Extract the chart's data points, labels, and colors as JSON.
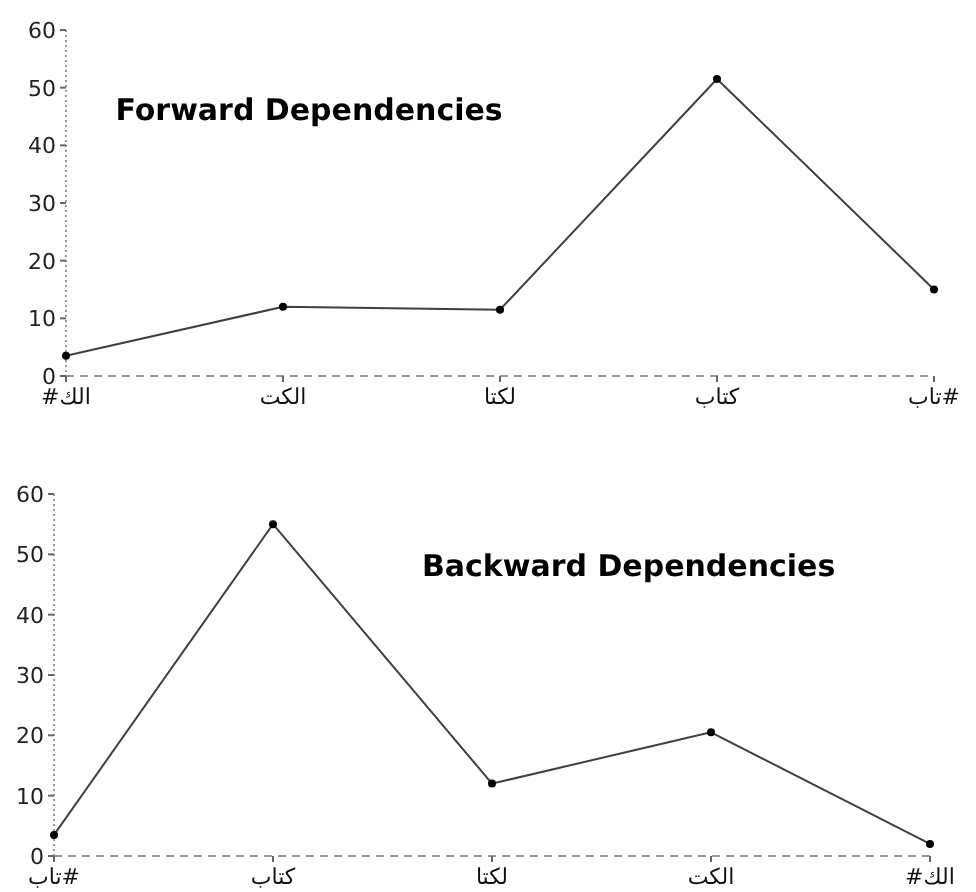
{
  "chart_data": [
    {
      "type": "line",
      "title": "Forward Dependencies",
      "categories": [
        "#الك",
        "الكت",
        "لكتا",
        "كتاب",
        "تاب#"
      ],
      "values": [
        3.5,
        12,
        11.5,
        51.5,
        15
      ],
      "color": "#404040",
      "marker": "circle",
      "ylim": [
        0,
        60
      ],
      "yticks": [
        0,
        10,
        20,
        30,
        40,
        50,
        60
      ]
    },
    {
      "type": "line",
      "title": "Backward Dependencies",
      "categories": [
        "تاب#",
        "كتاب",
        "لكتا",
        "الكت",
        "#الك"
      ],
      "values": [
        3.5,
        55,
        12,
        20.5,
        2
      ],
      "color": "#404040",
      "marker": "circle",
      "ylim": [
        0,
        60
      ],
      "yticks": [
        0,
        10,
        20,
        30,
        40,
        50,
        60
      ]
    }
  ]
}
